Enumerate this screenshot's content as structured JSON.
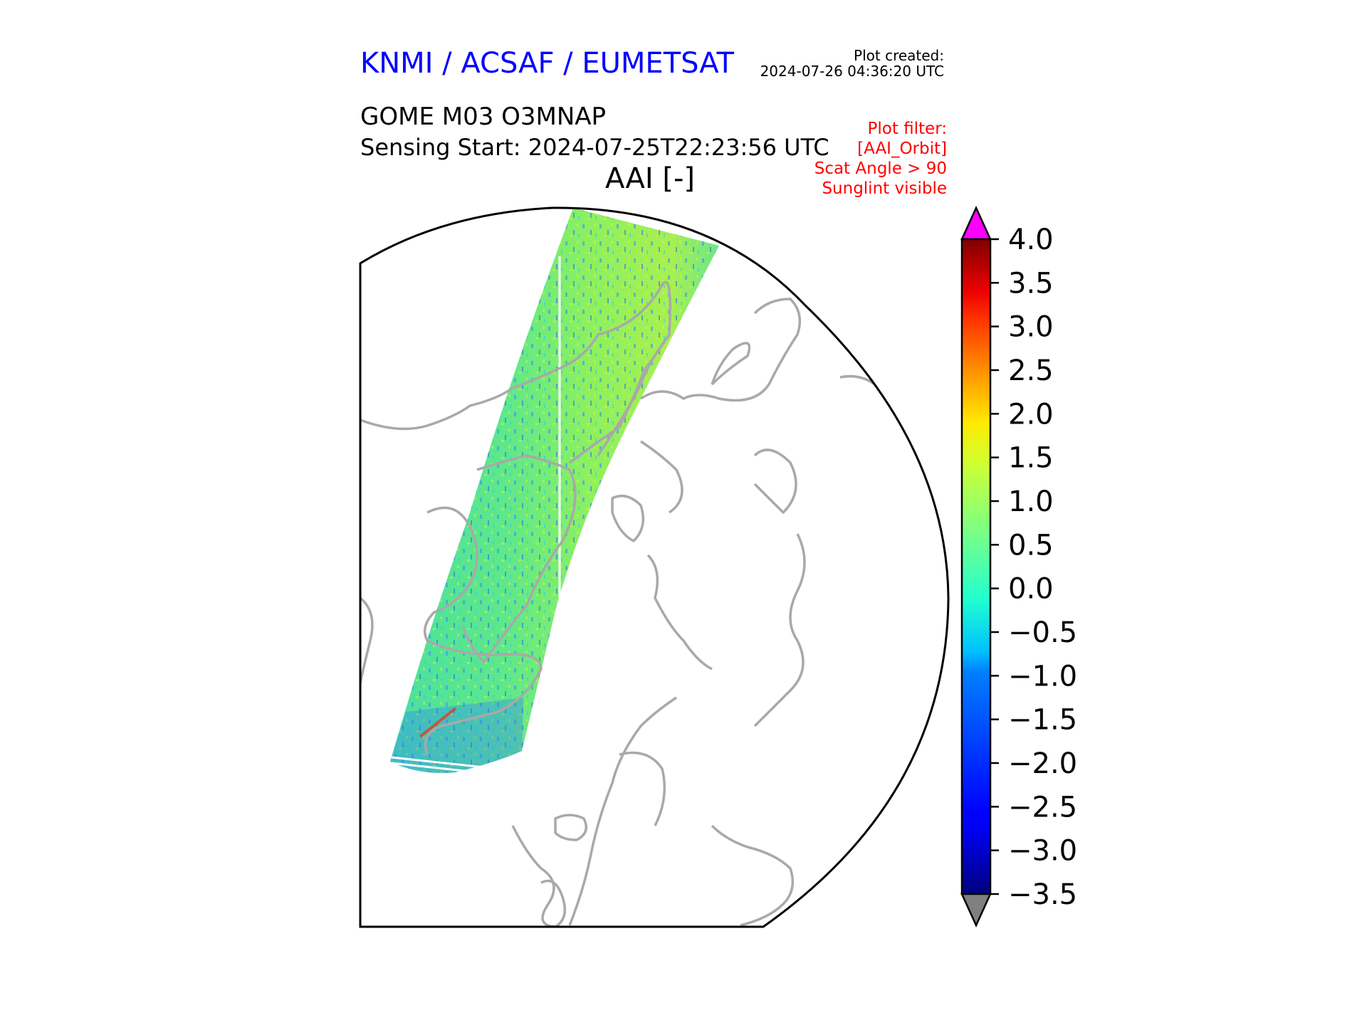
{
  "header": {
    "organisation": "KNMI / ACSAF / EUMETSAT",
    "plot_created_label": "Plot created:",
    "plot_created_time": "2024-07-26 04:36:20 UTC"
  },
  "product": {
    "title": "GOME M03 O3MNAP",
    "sensing_start": "Sensing Start: 2024-07-25T22:23:56 UTC",
    "variable": "AAI [-]"
  },
  "filter": {
    "lines": [
      "Plot filter:",
      "[AAI_Orbit]",
      "Scat Angle > 90",
      "Sunglint visible"
    ]
  },
  "colors": {
    "header": "#0000ff",
    "filter": "#ff0000",
    "coastline": "#a9a9a9",
    "extend_max": "#ff00ff",
    "extend_min": "#808080"
  },
  "colorbar": {
    "min": -3.5,
    "max": 4.0,
    "ticks": [
      "4.0",
      "3.5",
      "3.0",
      "2.5",
      "2.0",
      "1.5",
      "1.0",
      "0.5",
      "0.0",
      "−0.5",
      "−1.0",
      "−1.5",
      "−2.0",
      "−2.5",
      "−3.0",
      "−3.5"
    ]
  }
}
